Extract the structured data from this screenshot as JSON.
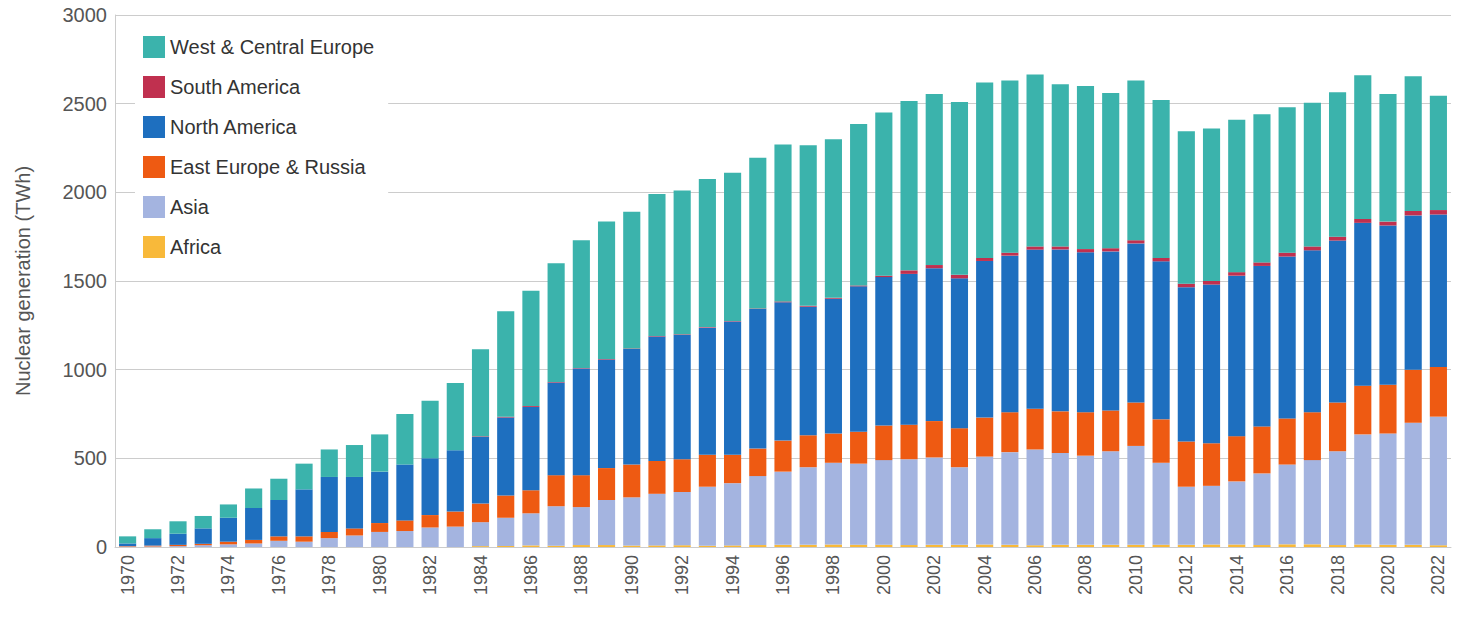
{
  "chart_data": {
    "type": "bar",
    "y_label": "Nuclear generation (TWh)",
    "stacked": true,
    "grid": true,
    "legend": "top-left",
    "categories": [
      "1970",
      null,
      "1972",
      null,
      "1974",
      null,
      "1976",
      null,
      "1978",
      null,
      "1980",
      null,
      "1982",
      null,
      "1984",
      null,
      "1986",
      null,
      "1988",
      null,
      "1990",
      null,
      "1992",
      null,
      "1994",
      null,
      "1996",
      null,
      "1998",
      null,
      "2000",
      null,
      "2002",
      null,
      "2004",
      null,
      "2006",
      null,
      "2008",
      null,
      "2010",
      null,
      "2012",
      null,
      "2014",
      null,
      "2016",
      null,
      "2018",
      null,
      "2020",
      null,
      "2022"
    ],
    "ylim": [
      0,
      3000
    ],
    "yticks": [
      0,
      500,
      1000,
      1500,
      2000,
      2500,
      3000
    ],
    "series": [
      {
        "name": "Africa",
        "color": "#f8b93a",
        "values": [
          0,
          0,
          0,
          0,
          0,
          0,
          0,
          0,
          0,
          0,
          0,
          0,
          0,
          0,
          5,
          5,
          9,
          7,
          11,
          11,
          8,
          9,
          10,
          7,
          9,
          11,
          12,
          12,
          14,
          13,
          13,
          11,
          12,
          12,
          14,
          12,
          10,
          12,
          12,
          12,
          12,
          13,
          12,
          14,
          14,
          11,
          15,
          15,
          11,
          14,
          12,
          12,
          10
        ]
      },
      {
        "name": "Asia",
        "color": "#a4b4e0",
        "values": [
          2,
          3,
          5,
          10,
          15,
          20,
          35,
          30,
          50,
          65,
          85,
          90,
          110,
          115,
          135,
          160,
          181,
          223,
          214,
          254,
          272,
          291,
          300,
          333,
          351,
          389,
          413,
          438,
          461,
          457,
          477,
          484,
          493,
          438,
          496,
          523,
          540,
          518,
          503,
          528,
          558,
          462,
          328,
          331,
          356,
          404,
          450,
          475,
          529,
          621,
          628,
          688,
          725
        ]
      },
      {
        "name": "East Europe & Russia",
        "color": "#ee5a12",
        "values": [
          3,
          5,
          7,
          8,
          15,
          20,
          25,
          30,
          35,
          40,
          50,
          60,
          70,
          85,
          105,
          125,
          130,
          175,
          180,
          180,
          185,
          185,
          185,
          180,
          160,
          155,
          175,
          180,
          165,
          180,
          195,
          195,
          205,
          220,
          220,
          225,
          230,
          235,
          245,
          230,
          245,
          245,
          255,
          240,
          255,
          265,
          260,
          270,
          275,
          275,
          275,
          300,
          280
        ]
      },
      {
        "name": "North America",
        "color": "#1e6fbf",
        "values": [
          15,
          42,
          63,
          87,
          135,
          180,
          205,
          265,
          310,
          290,
          290,
          315,
          320,
          345,
          377,
          440,
          470,
          522,
          602,
          612,
          652,
          702,
          702,
          717,
          752,
          787,
          780,
          725,
          760,
          820,
          837,
          850,
          862,
          845,
          883,
          883,
          897,
          913,
          902,
          897,
          897,
          891,
          870,
          895,
          905,
          905,
          913,
          913,
          913,
          918,
          898,
          870,
          860
        ]
      },
      {
        "name": "South America",
        "color": "#c0304f",
        "values": [
          0,
          0,
          0,
          0,
          0,
          0,
          0,
          0,
          0,
          0,
          0,
          0,
          0,
          0,
          3,
          5,
          5,
          3,
          3,
          3,
          3,
          3,
          3,
          3,
          3,
          3,
          5,
          5,
          5,
          5,
          8,
          20,
          18,
          20,
          17,
          17,
          18,
          17,
          18,
          18,
          18,
          19,
          20,
          20,
          20,
          20,
          22,
          22,
          22,
          22,
          22,
          25,
          25
        ]
      },
      {
        "name": "West & Central Europe",
        "color": "#3bb3ac",
        "values": [
          40,
          50,
          70,
          70,
          75,
          110,
          120,
          145,
          155,
          180,
          210,
          285,
          325,
          380,
          490,
          595,
          650,
          670,
          720,
          775,
          770,
          800,
          810,
          835,
          835,
          850,
          885,
          905,
          895,
          910,
          920,
          955,
          965,
          975,
          990,
          970,
          970,
          915,
          920,
          875,
          900,
          890,
          860,
          860,
          860,
          835,
          820,
          810,
          815,
          810,
          720,
          760,
          645
        ]
      }
    ]
  }
}
